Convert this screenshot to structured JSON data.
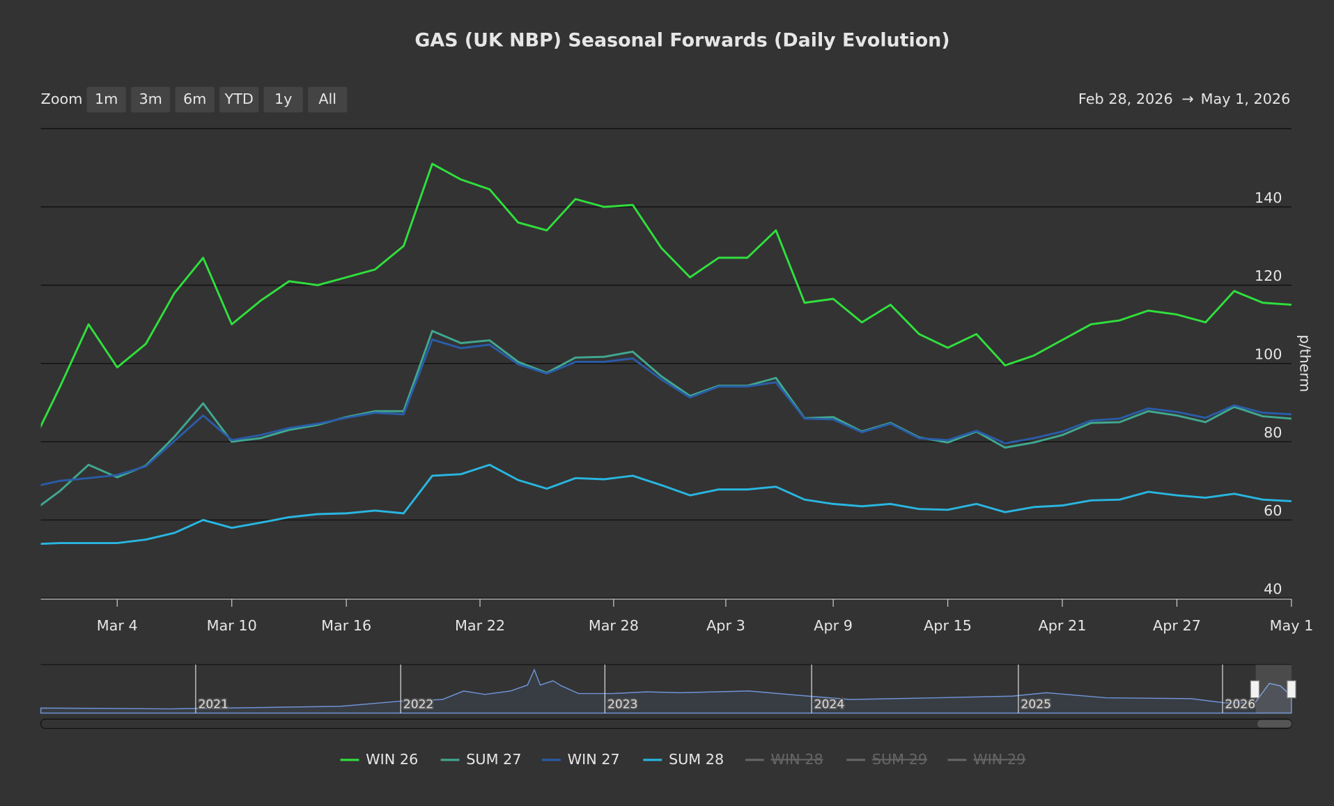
{
  "chart_data": {
    "type": "line",
    "title": "GAS (UK NBP) Seasonal Forwards (Daily Evolution)",
    "zoom_label": "Zoom",
    "zoom_buttons": [
      "1m",
      "3m",
      "6m",
      "YTD",
      "1y",
      "All"
    ],
    "range_from": "Feb 28, 2026",
    "range_arrow": "→",
    "range_to": "May 1, 2026",
    "y_axis_label": "p/therm",
    "x": [
      "2026-02-27",
      "2026-03-02",
      "2026-03-03",
      "2026-03-04",
      "2026-03-05",
      "2026-03-06",
      "2026-03-09",
      "2026-03-10",
      "2026-03-11",
      "2026-03-12",
      "2026-03-13",
      "2026-03-16",
      "2026-03-17",
      "2026-03-18",
      "2026-03-19",
      "2026-03-20",
      "2026-03-23",
      "2026-03-24",
      "2026-03-25",
      "2026-03-26",
      "2026-03-27",
      "2026-03-30",
      "2026-03-31",
      "2026-04-01",
      "2026-04-02",
      "2026-04-06",
      "2026-04-07",
      "2026-04-08",
      "2026-04-09",
      "2026-04-10",
      "2026-04-13",
      "2026-04-14",
      "2026-04-15",
      "2026-04-16",
      "2026-04-17",
      "2026-04-20",
      "2026-04-21",
      "2026-04-22",
      "2026-04-23",
      "2026-04-24",
      "2026-04-27",
      "2026-04-28",
      "2026-04-29",
      "2026-04-30",
      "2026-05-01"
    ],
    "xlim": [
      "2026-02-28",
      "2026-05-01"
    ],
    "xticks": [
      {
        "value": "2026-03-04",
        "label": "Mar 4"
      },
      {
        "value": "2026-03-10",
        "label": "Mar 10"
      },
      {
        "value": "2026-03-16",
        "label": "Mar 16"
      },
      {
        "value": "2026-03-22",
        "label": "Mar 22"
      },
      {
        "value": "2026-03-28",
        "label": "Mar 28"
      },
      {
        "value": "2026-04-03",
        "label": "Apr 3"
      },
      {
        "value": "2026-04-09",
        "label": "Apr 9"
      },
      {
        "value": "2026-04-15",
        "label": "Apr 15"
      },
      {
        "value": "2026-04-21",
        "label": "Apr 21"
      },
      {
        "value": "2026-04-27",
        "label": "Apr 27"
      },
      {
        "value": "2026-05-01",
        "label": "May 1"
      }
    ],
    "ylim": [
      40,
      160
    ],
    "yticks": [
      40,
      60,
      80,
      100,
      120,
      140
    ],
    "grid": true,
    "series": [
      {
        "name": "WIN 26",
        "color": "#2fe03c",
        "values": [
          79,
          94,
          110,
          99,
          105,
          118,
          127,
          110,
          116,
          121,
          120,
          122,
          124,
          130,
          151,
          147,
          144.5,
          136,
          134,
          142,
          140,
          140.5,
          129.5,
          122,
          127,
          127,
          134,
          115.5,
          116.5,
          110.5,
          115,
          107.5,
          104,
          107.5,
          99.5,
          102,
          106,
          110,
          111,
          113.5,
          112.5,
          110.5,
          118.5,
          115.5,
          115
        ]
      },
      {
        "name": "SUM 27",
        "color": "#40a890",
        "values": [
          62,
          67.4,
          74.1,
          70.9,
          73.9,
          81.3,
          89.8,
          80,
          80.9,
          83,
          84.3,
          86.3,
          87.8,
          87.8,
          108.3,
          105.2,
          105.9,
          100.4,
          97.6,
          101.5,
          101.7,
          103,
          96.7,
          91.7,
          94.3,
          94.3,
          96.3,
          86,
          86.3,
          82.6,
          84.8,
          81.1,
          79.8,
          82.6,
          78.5,
          79.8,
          81.7,
          84.8,
          85,
          87.8,
          86.7,
          85,
          88.9,
          86.5,
          85.9
        ]
      },
      {
        "name": "WIN 27",
        "color": "#2a5ca8",
        "values": [
          68.4,
          70,
          70.7,
          71.5,
          73.7,
          80.2,
          86.7,
          80.4,
          81.7,
          83.5,
          84.6,
          86.1,
          87.4,
          87,
          106.1,
          103.9,
          104.8,
          99.8,
          97.4,
          100.4,
          100.4,
          101.3,
          95.9,
          91.3,
          94.1,
          94.1,
          95.2,
          85.9,
          85.7,
          82.4,
          84.6,
          80.9,
          80.4,
          82.8,
          79.6,
          80.9,
          82.6,
          85.4,
          85.9,
          88.5,
          87.6,
          86.1,
          89.3,
          87.4,
          87
        ]
      },
      {
        "name": "SUM 28",
        "color": "#29b6e0",
        "values": [
          53.8,
          54.1,
          54.1,
          54.1,
          55,
          56.7,
          60,
          58,
          59.3,
          60.7,
          61.5,
          61.7,
          62.4,
          61.7,
          71.3,
          71.7,
          74.1,
          70.2,
          68,
          70.7,
          70.4,
          71.3,
          68.9,
          66.3,
          67.8,
          67.8,
          68.5,
          65.2,
          64.1,
          63.5,
          64.1,
          62.8,
          62.6,
          64.1,
          62,
          63.3,
          63.7,
          65,
          65.2,
          67.2,
          66.3,
          65.7,
          66.7,
          65.2,
          64.8
        ]
      }
    ],
    "hidden_series": [
      "WIN 28",
      "SUM 29",
      "WIN 29"
    ],
    "navigator_years": [
      "2021",
      "2022",
      "2023",
      "2024",
      "2025",
      "2026"
    ]
  }
}
